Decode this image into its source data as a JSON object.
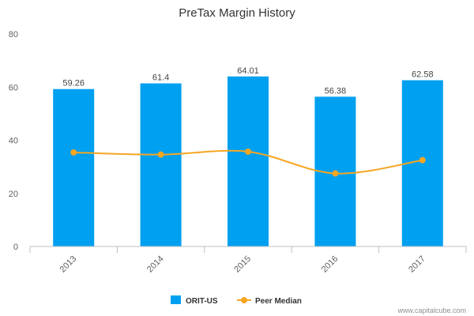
{
  "chart_data": {
    "type": "bar",
    "title": "PreTax Margin History",
    "categories": [
      "2013",
      "2014",
      "2015",
      "2016",
      "2017"
    ],
    "series": [
      {
        "name": "ORIT-US",
        "type": "bar",
        "color": "#00a0f0",
        "values": [
          59.26,
          61.4,
          64.01,
          56.38,
          62.58
        ]
      },
      {
        "name": "Peer Median",
        "type": "line",
        "color": "#f5a623",
        "values": [
          35.4,
          34.6,
          35.7,
          27.5,
          32.5
        ]
      }
    ],
    "data_labels": [
      "59.26",
      "61.4",
      "64.01",
      "56.38",
      "62.58"
    ],
    "y_ticks": [
      "0",
      "20",
      "40",
      "60",
      "80"
    ],
    "ylim": [
      0,
      80
    ],
    "grid": false,
    "legend_position": "bottom-center"
  },
  "credit": "www.capitalcube.com"
}
